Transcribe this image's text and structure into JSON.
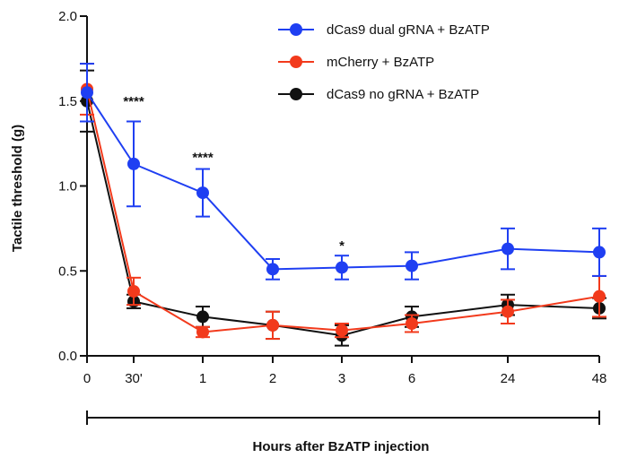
{
  "chart_data": {
    "type": "line",
    "title": "",
    "xlabel": "Hours after BzATP injection",
    "ylabel": "Tactile threshold (g)",
    "ylim": [
      0,
      2.0
    ],
    "yticks": [
      "0.0",
      "0.5",
      "1.0",
      "1.5",
      "2.0"
    ],
    "categories": [
      "0",
      "30'",
      "1",
      "2",
      "3",
      "6",
      "24",
      "48"
    ],
    "legend_position": "top-right",
    "grid": false,
    "series": [
      {
        "name": "dCas9 dual gRNA + BzATP",
        "color": "#1f3ff2",
        "values": [
          1.55,
          1.13,
          0.96,
          0.51,
          0.52,
          0.53,
          0.63,
          0.61
        ],
        "err": [
          0.17,
          0.25,
          0.14,
          0.06,
          0.07,
          0.08,
          0.12,
          0.14
        ]
      },
      {
        "name": "mCherry + BzATP",
        "color": "#f23a1c",
        "values": [
          1.57,
          0.38,
          0.14,
          0.18,
          0.15,
          0.19,
          0.26,
          0.35
        ],
        "err": [
          0.15,
          0.08,
          0.03,
          0.08,
          0.04,
          0.05,
          0.07,
          0.12
        ]
      },
      {
        "name": "dCas9 no gRNA + BzATP",
        "color": "#111111",
        "values": [
          1.5,
          0.32,
          0.23,
          0.18,
          0.12,
          0.23,
          0.3,
          0.28
        ],
        "err": [
          0.18,
          0.04,
          0.06,
          0.08,
          0.06,
          0.06,
          0.06,
          0.06
        ]
      }
    ],
    "annotations": [
      {
        "category": "30'",
        "text": "****",
        "y": 1.5
      },
      {
        "category": "1",
        "text": "****",
        "y": 1.17
      },
      {
        "category": "3",
        "text": "*",
        "y": 0.65
      }
    ]
  }
}
